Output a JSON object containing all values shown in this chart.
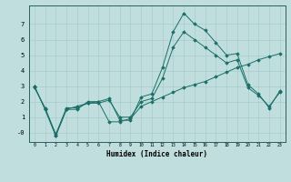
{
  "xlabel": "Humidex (Indice chaleur)",
  "background_color": "#c0dede",
  "grid_color": "#a8cccc",
  "line_color": "#1a7068",
  "x_values": [
    0,
    1,
    2,
    3,
    4,
    5,
    6,
    7,
    8,
    9,
    10,
    11,
    12,
    13,
    14,
    15,
    16,
    17,
    18,
    19,
    20,
    21,
    22,
    23
  ],
  "series1": [
    3.0,
    1.5,
    -0.2,
    1.5,
    1.5,
    2.0,
    2.0,
    2.2,
    0.8,
    0.8,
    2.3,
    2.5,
    4.2,
    6.5,
    7.7,
    7.0,
    6.6,
    5.8,
    5.0,
    5.1,
    3.1,
    2.5,
    1.6,
    2.7
  ],
  "series2": [
    3.0,
    1.5,
    -0.2,
    1.5,
    1.7,
    1.9,
    2.0,
    0.7,
    0.7,
    0.9,
    1.7,
    2.0,
    2.3,
    2.6,
    2.9,
    3.1,
    3.3,
    3.6,
    3.9,
    4.2,
    4.4,
    4.7,
    4.9,
    5.1
  ],
  "series3": [
    2.9,
    1.6,
    -0.1,
    1.6,
    1.6,
    1.9,
    1.9,
    2.1,
    1.0,
    1.0,
    2.0,
    2.2,
    3.5,
    5.5,
    6.5,
    6.0,
    5.5,
    5.0,
    4.5,
    4.7,
    2.9,
    2.4,
    1.7,
    2.6
  ],
  "ylim": [
    -0.6,
    8.2
  ],
  "xlim": [
    -0.5,
    23.5
  ],
  "yticks": [
    0,
    1,
    2,
    3,
    4,
    5,
    6,
    7
  ],
  "ytick_labels": [
    "-0",
    "1",
    "2",
    "3",
    "4",
    "5",
    "6",
    "7"
  ],
  "xticks": [
    0,
    1,
    2,
    3,
    4,
    5,
    6,
    7,
    8,
    9,
    10,
    11,
    12,
    13,
    14,
    15,
    16,
    17,
    18,
    19,
    20,
    21,
    22,
    23
  ],
  "xtick_labels": [
    "0",
    "1",
    "2",
    "3",
    "4",
    "5",
    "6",
    "7",
    "8",
    "9",
    "10",
    "11",
    "12",
    "13",
    "14",
    "15",
    "16",
    "17",
    "18",
    "19",
    "20",
    "21",
    "22",
    "23"
  ]
}
